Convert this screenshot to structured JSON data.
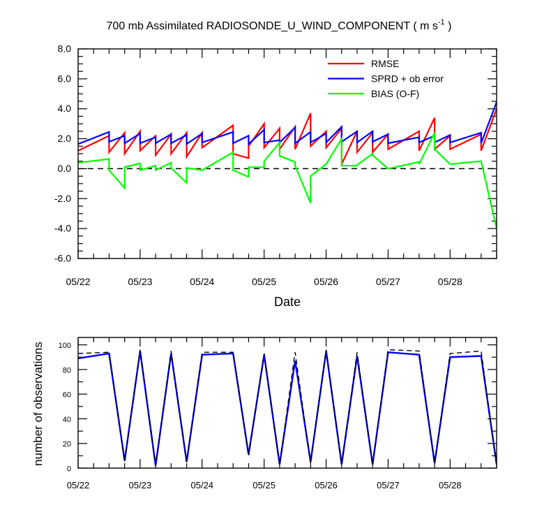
{
  "title": "700 mb Assimilated RADIOSONDE_U_WIND_COMPONENT ( m s",
  "title_sup": "-1",
  "title_end": " )",
  "chart_data": [
    {
      "type": "line",
      "x_label": "Date",
      "x_tick_labels": [
        "05/22",
        "05/23",
        "05/24",
        "05/25",
        "05/26",
        "05/27",
        "05/28"
      ],
      "x_ticks": [
        0,
        1,
        2,
        3,
        4,
        5,
        6
      ],
      "xlim": [
        0,
        6.75
      ],
      "ylim": [
        -6,
        8
      ],
      "y_ticks": [
        -6,
        -4,
        -2,
        0,
        2,
        4,
        6,
        8
      ],
      "y_tick_labels": [
        "-6.0",
        "-4.0",
        "-2.0",
        "0.0",
        "2.0",
        "4.0",
        "6.0",
        "8.0"
      ],
      "zero_line": "dashed",
      "legend_position": "top-right",
      "series": [
        {
          "name": "RMSE",
          "color": "#ff0000",
          "x": [
            0,
            0.5,
            0.5,
            0.75,
            0.75,
            1.0,
            1.0,
            1.25,
            1.25,
            1.5,
            1.5,
            1.75,
            1.75,
            2.0,
            2.0,
            2.5,
            2.5,
            2.75,
            2.75,
            3.0,
            3.0,
            3.25,
            3.25,
            3.5,
            3.5,
            3.75,
            3.75,
            4.0,
            4.0,
            4.25,
            4.25,
            4.5,
            4.5,
            4.75,
            4.75,
            5.0,
            5.0,
            5.5,
            5.5,
            5.75,
            5.75,
            6.0,
            6.0,
            6.5,
            6.5,
            6.75
          ],
          "y": [
            1.2,
            2.2,
            1.1,
            2.4,
            1.0,
            2.5,
            1.2,
            2.2,
            0.9,
            2.3,
            1.0,
            2.4,
            0.8,
            2.4,
            1.4,
            2.9,
            1.0,
            0.7,
            1.5,
            3.0,
            1.4,
            2.7,
            1.3,
            2.8,
            1.3,
            3.7,
            1.5,
            2.5,
            1.4,
            2.7,
            0.3,
            2.5,
            1.1,
            2.4,
            1.1,
            2.3,
            1.3,
            2.5,
            1.2,
            3.4,
            1.3,
            2.2,
            1.3,
            2.3,
            1.2,
            4.0
          ]
        },
        {
          "name": "SPRD + ob error",
          "color": "#0000ff",
          "x": [
            0,
            0.5,
            0.5,
            0.75,
            0.75,
            1.0,
            1.0,
            1.25,
            1.25,
            1.5,
            1.5,
            1.75,
            1.75,
            2.0,
            2.0,
            2.5,
            2.5,
            2.75,
            2.75,
            3.0,
            3.0,
            3.25,
            3.25,
            3.5,
            3.5,
            3.75,
            3.75,
            4.0,
            4.0,
            4.25,
            4.25,
            4.5,
            4.5,
            4.75,
            4.75,
            5.0,
            5.0,
            5.5,
            5.5,
            5.75,
            5.75,
            6.0,
            6.0,
            6.5,
            6.5,
            6.75
          ],
          "y": [
            1.65,
            2.45,
            1.8,
            2.2,
            1.7,
            2.35,
            1.7,
            2.1,
            1.7,
            2.3,
            1.7,
            2.25,
            1.65,
            2.35,
            1.75,
            2.45,
            1.7,
            2.2,
            1.65,
            2.6,
            1.75,
            1.9,
            1.75,
            2.75,
            1.7,
            2.45,
            1.75,
            2.35,
            1.75,
            2.8,
            1.8,
            2.5,
            1.75,
            2.5,
            1.8,
            2.3,
            1.7,
            2.1,
            1.75,
            2.2,
            1.75,
            2.25,
            1.75,
            2.4,
            1.7,
            4.45
          ]
        },
        {
          "name": "BIAS (O-F)",
          "color": "#00ff00",
          "x": [
            0,
            0.5,
            0.5,
            0.75,
            0.75,
            1.0,
            1.0,
            1.25,
            1.25,
            1.5,
            1.5,
            1.75,
            1.75,
            2.0,
            2.0,
            2.5,
            2.5,
            2.75,
            2.75,
            3.0,
            3.0,
            3.25,
            3.25,
            3.5,
            3.5,
            3.75,
            3.75,
            4.0,
            4.0,
            4.25,
            4.25,
            4.5,
            4.5,
            4.75,
            4.75,
            5.0,
            5.0,
            5.5,
            5.5,
            5.75,
            5.75,
            6.0,
            6.0,
            6.5,
            6.5,
            6.75
          ],
          "y": [
            0.4,
            0.65,
            -0.1,
            -1.3,
            0.1,
            0.35,
            -0.1,
            0.2,
            -0.1,
            0.4,
            0.05,
            -0.95,
            0.05,
            -0.1,
            -0.1,
            1.1,
            -0.1,
            -0.55,
            0.1,
            0.1,
            0.5,
            1.75,
            0.85,
            0.45,
            0.2,
            -2.3,
            -0.5,
            0.3,
            0.3,
            2.0,
            0.2,
            0.2,
            0.25,
            1.0,
            0.9,
            0.0,
            0.0,
            0.45,
            0.3,
            2.4,
            1.3,
            0.3,
            0.3,
            0.5,
            0.5,
            -4.0
          ]
        }
      ]
    },
    {
      "type": "line",
      "ylabel": "number of observations",
      "x_tick_labels": [
        "05/22",
        "05/23",
        "05/24",
        "05/25",
        "05/26",
        "05/27",
        "05/28"
      ],
      "x_ticks": [
        0,
        1,
        2,
        3,
        4,
        5,
        6
      ],
      "xlim": [
        0,
        6.75
      ],
      "ylim": [
        0,
        106
      ],
      "y_ticks": [
        0,
        20,
        40,
        60,
        80,
        100
      ],
      "y_tick_labels": [
        "0",
        "20",
        "40",
        "60",
        "80",
        "100"
      ],
      "series": [
        {
          "color": "#0000ff",
          "style": "solid",
          "x": [
            0,
            0.5,
            0.75,
            1.0,
            1.25,
            1.5,
            1.75,
            2.0,
            2.5,
            2.75,
            3.0,
            3.25,
            3.5,
            3.75,
            4.0,
            4.25,
            4.5,
            4.75,
            5.0,
            5.5,
            5.75,
            6.0,
            6.5,
            6.75
          ],
          "y": [
            89,
            93,
            6,
            95,
            2,
            93,
            5,
            92,
            93,
            11,
            92,
            3,
            87,
            5,
            95,
            3,
            91,
            3,
            94,
            92,
            4,
            90,
            91,
            3
          ]
        },
        {
          "color": "#000000",
          "style": "dashed",
          "x": [
            0,
            0.5,
            0.75,
            1.0,
            1.25,
            1.5,
            1.75,
            2.0,
            2.5,
            2.75,
            3.0,
            3.25,
            3.5,
            3.75,
            4.0,
            4.25,
            4.5,
            4.75,
            5.0,
            5.5,
            5.75,
            6.0,
            6.5,
            6.75
          ],
          "y": [
            93,
            94,
            5,
            96,
            2,
            95,
            5,
            94,
            94,
            10,
            93,
            3,
            94,
            4,
            96,
            3,
            94,
            3,
            96,
            95,
            4,
            93,
            95,
            2
          ]
        }
      ]
    }
  ]
}
